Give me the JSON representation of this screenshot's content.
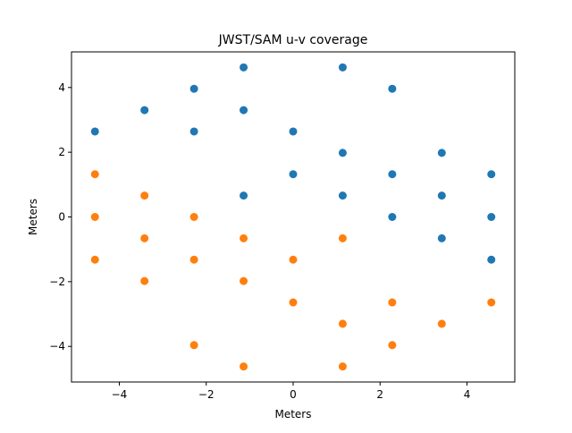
{
  "chart_data": {
    "type": "scatter",
    "title": "JWST/SAM u-v coverage",
    "xlabel": "Meters",
    "ylabel": "Meters",
    "xlim": [
      -5.1,
      5.1
    ],
    "ylim": [
      -5.1,
      5.1
    ],
    "xticks": [
      -4,
      -2,
      0,
      2,
      4
    ],
    "yticks": [
      -4,
      -2,
      0,
      2,
      4
    ],
    "grid": false,
    "series": [
      {
        "color": "#1f77b4",
        "points": [
          [
            -1.14,
            4.62
          ],
          [
            1.14,
            4.62
          ],
          [
            -2.28,
            3.96
          ],
          [
            2.28,
            3.96
          ],
          [
            -3.42,
            3.3
          ],
          [
            -1.14,
            3.3
          ],
          [
            -4.56,
            2.64
          ],
          [
            -2.28,
            2.64
          ],
          [
            0,
            2.64
          ],
          [
            1.14,
            1.98
          ],
          [
            3.42,
            1.98
          ],
          [
            0,
            1.32
          ],
          [
            2.28,
            1.32
          ],
          [
            4.56,
            1.32
          ],
          [
            -1.14,
            0.66
          ],
          [
            1.14,
            0.66
          ],
          [
            3.42,
            0.66
          ],
          [
            2.28,
            0
          ],
          [
            4.56,
            0
          ],
          [
            3.42,
            -0.66
          ],
          [
            4.56,
            -1.32
          ]
        ]
      },
      {
        "color": "#ff7f0e",
        "points": [
          [
            1.14,
            -4.62
          ],
          [
            -1.14,
            -4.62
          ],
          [
            2.28,
            -3.96
          ],
          [
            -2.28,
            -3.96
          ],
          [
            3.42,
            -3.3
          ],
          [
            1.14,
            -3.3
          ],
          [
            4.56,
            -2.64
          ],
          [
            2.28,
            -2.64
          ],
          [
            0,
            -2.64
          ],
          [
            -1.14,
            -1.98
          ],
          [
            -3.42,
            -1.98
          ],
          [
            0,
            -1.32
          ],
          [
            -2.28,
            -1.32
          ],
          [
            -4.56,
            -1.32
          ],
          [
            1.14,
            -0.66
          ],
          [
            -1.14,
            -0.66
          ],
          [
            -3.42,
            -0.66
          ],
          [
            -2.28,
            0
          ],
          [
            -4.56,
            0
          ],
          [
            -3.42,
            0.66
          ],
          [
            -4.56,
            1.32
          ]
        ]
      }
    ]
  }
}
